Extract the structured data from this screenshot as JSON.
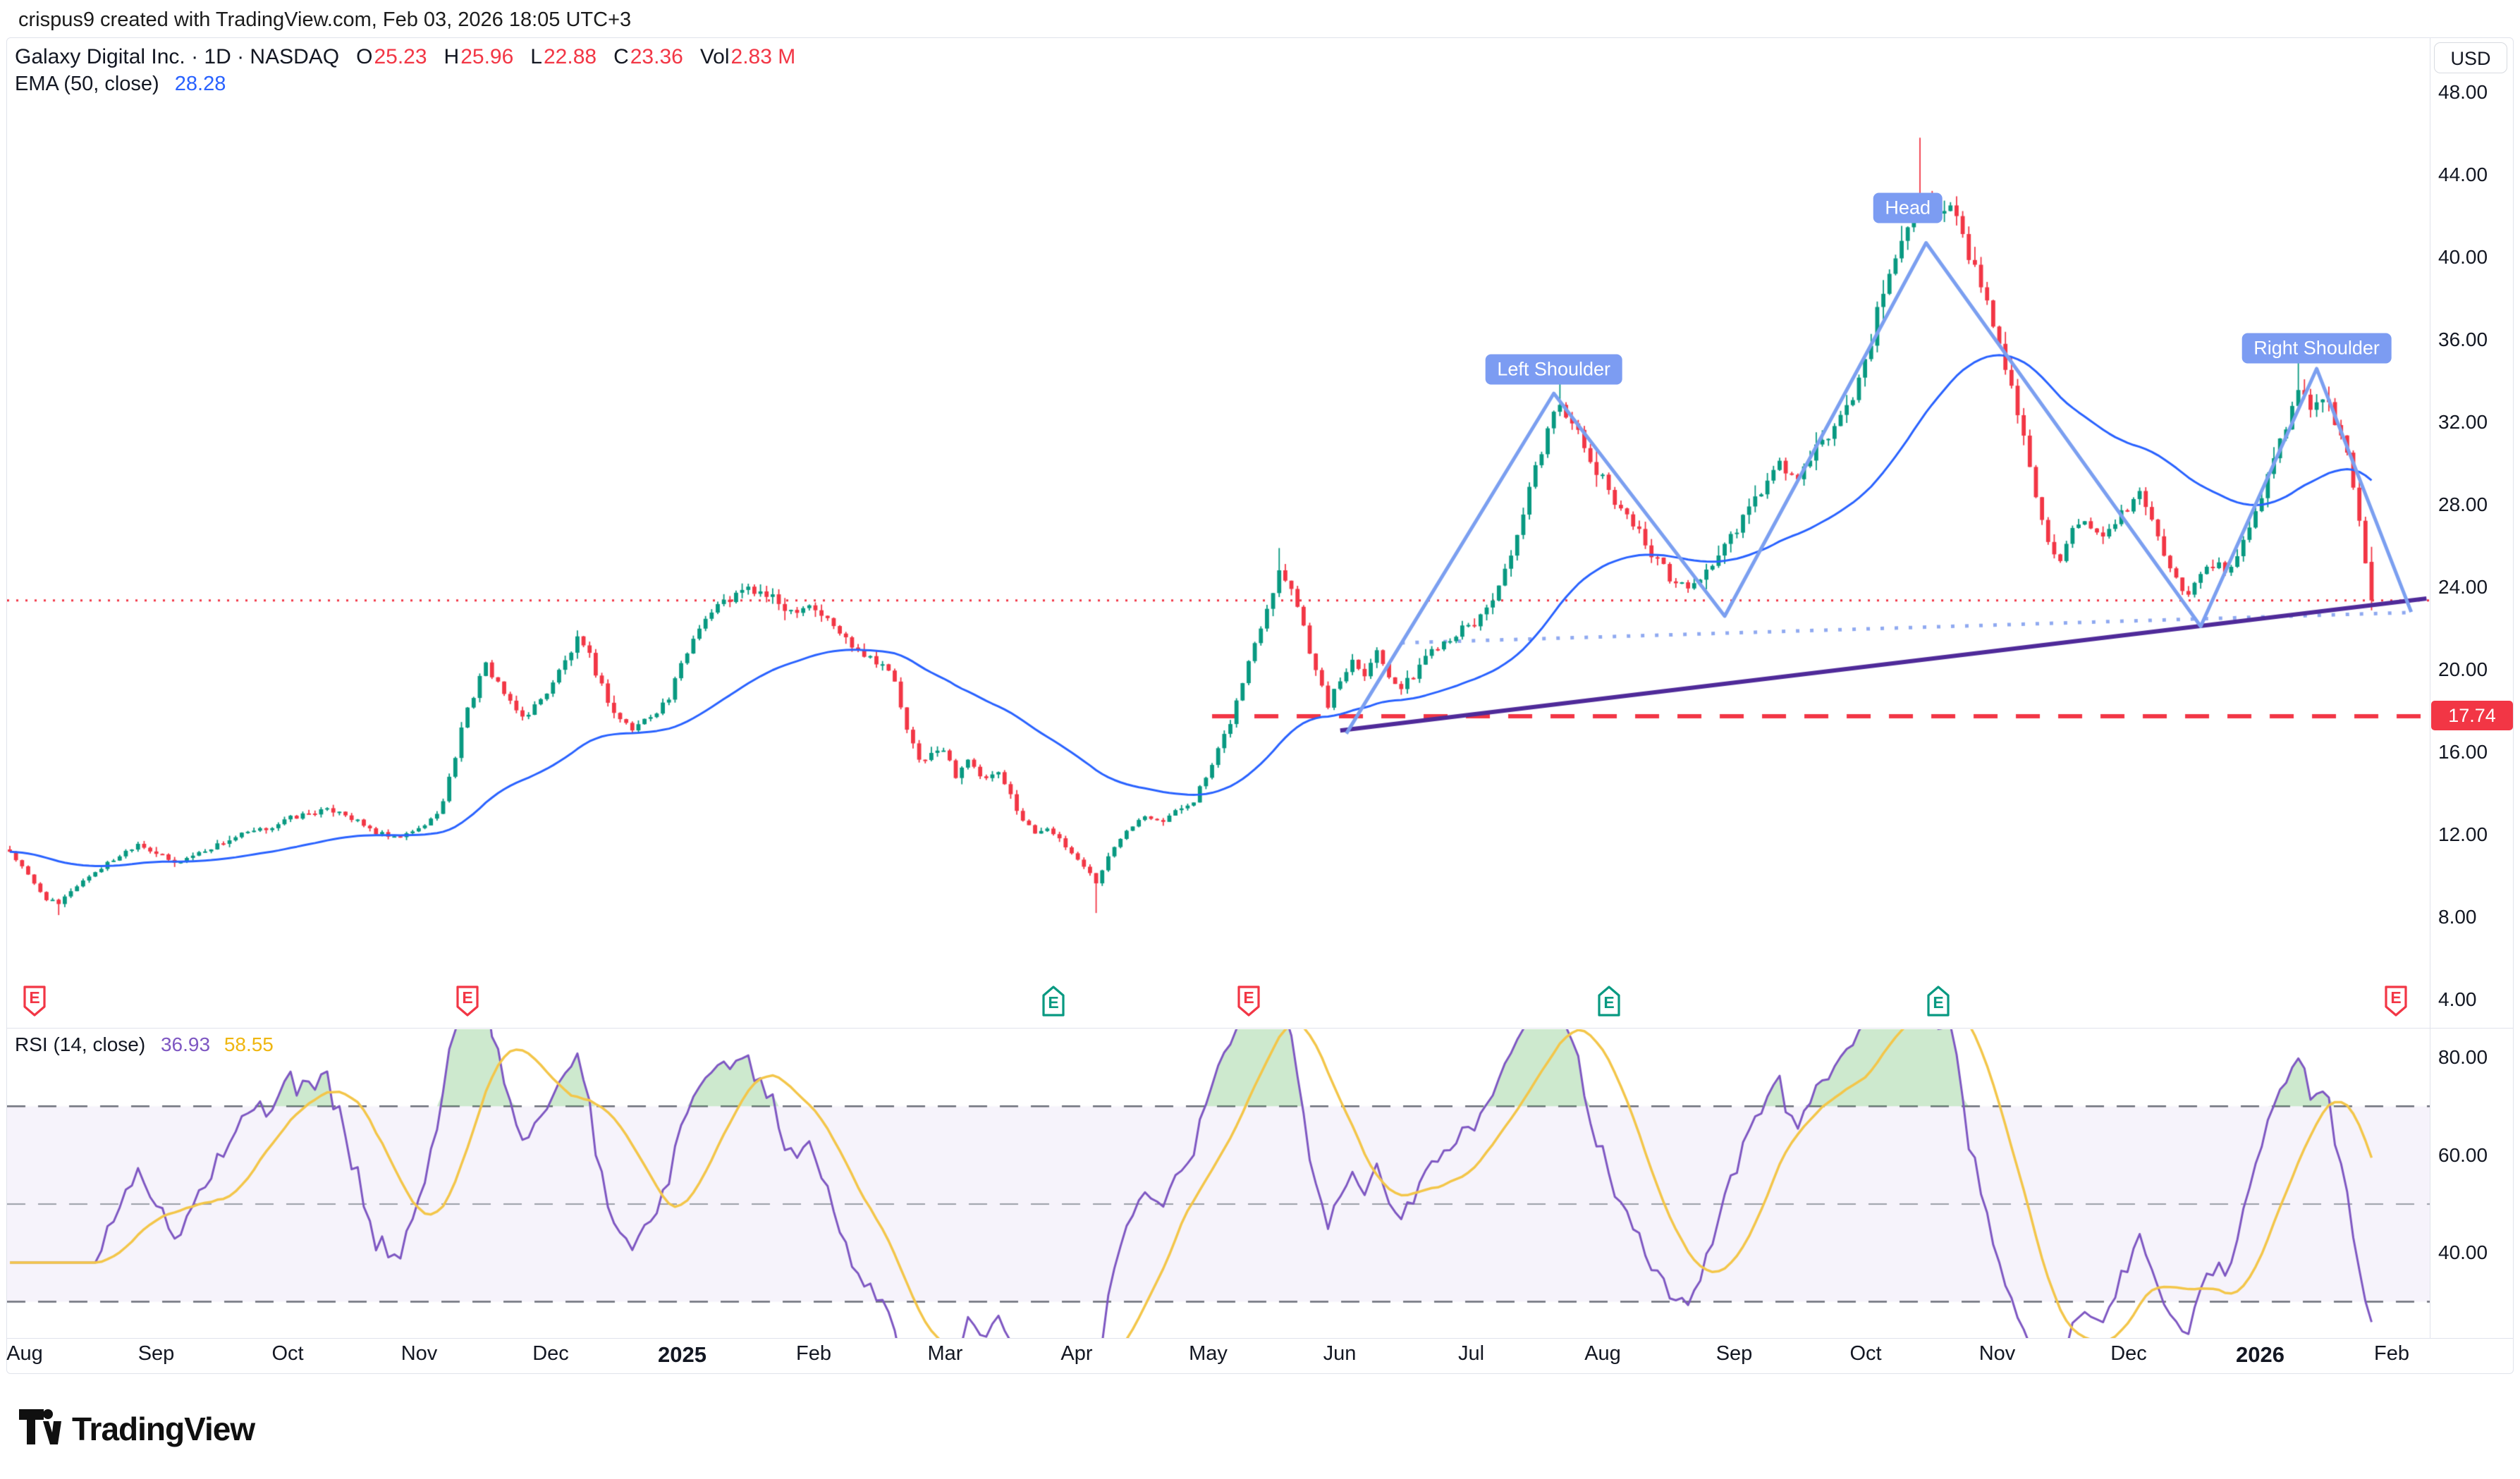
{
  "attribution": "crispus9 created with TradingView.com, Feb 03, 2026 18:05 UTC+3",
  "header": {
    "title_line": "Galaxy Digital Inc. · 1D · NASDAQ",
    "value_color": "#f23645",
    "ohlc": [
      {
        "label": "O",
        "value": "25.23"
      },
      {
        "label": "H",
        "value": "25.96"
      },
      {
        "label": "L",
        "value": "22.88"
      },
      {
        "label": "C",
        "value": "23.36"
      },
      {
        "label": "Vol",
        "value": "2.83 M"
      }
    ]
  },
  "ema_legend": {
    "label": "EMA (50, close)",
    "value": "28.28",
    "value_color": "#2962ff"
  },
  "rsi_legend": {
    "label": "RSI (14, close)",
    "value1": "36.93",
    "value1_color": "#7e57c2",
    "value2": "58.55",
    "value2_color": "#efb610"
  },
  "axis": {
    "currency": "USD",
    "price_ticks": [
      {
        "label": "48.00",
        "value": 48
      },
      {
        "label": "44.00",
        "value": 44
      },
      {
        "label": "40.00",
        "value": 40
      },
      {
        "label": "36.00",
        "value": 36
      },
      {
        "label": "32.00",
        "value": 32
      },
      {
        "label": "28.00",
        "value": 28
      },
      {
        "label": "24.00",
        "value": 24
      },
      {
        "label": "20.00",
        "value": 20
      },
      {
        "label": "16.00",
        "value": 16
      },
      {
        "label": "12.00",
        "value": 12
      },
      {
        "label": "8.00",
        "value": 8
      },
      {
        "label": "4.00",
        "value": 4
      }
    ],
    "price_flag": {
      "label": "17.74",
      "value": 17.74
    },
    "rsi_ticks": [
      {
        "label": "80.00",
        "value": 80
      },
      {
        "label": "60.00",
        "value": 60
      },
      {
        "label": "40.00",
        "value": 40
      }
    ]
  },
  "time_axis": {
    "labels": [
      {
        "text": "Aug"
      },
      {
        "text": "Sep"
      },
      {
        "text": "Oct"
      },
      {
        "text": "Nov"
      },
      {
        "text": "Dec"
      },
      {
        "text": "2025",
        "bold": true
      },
      {
        "text": "Feb"
      },
      {
        "text": "Mar"
      },
      {
        "text": "Apr"
      },
      {
        "text": "May"
      },
      {
        "text": "Jun"
      },
      {
        "text": "Jul"
      },
      {
        "text": "Aug"
      },
      {
        "text": "Sep"
      },
      {
        "text": "Oct"
      },
      {
        "text": "Nov"
      },
      {
        "text": "Dec"
      },
      {
        "text": "2026",
        "bold": true
      },
      {
        "text": "Feb"
      }
    ]
  },
  "logo": {
    "text": "TradingView"
  },
  "chart_data": {
    "type": "candlestick",
    "symbol": "Galaxy Digital Inc.",
    "interval": "1D",
    "exchange": "NASDAQ",
    "currency": "USD",
    "visible_range": "Aug 2024 - Feb 2026",
    "last_bar": {
      "open": 25.23,
      "high": 25.96,
      "low": 22.88,
      "close": 23.36,
      "volume": "2.83 M"
    },
    "ema_50_last": 28.28,
    "rsi_14_last": 36.93,
    "rsi_ma_last": 58.55,
    "price_axis": {
      "min": 4,
      "max": 48,
      "tick_step": 4
    },
    "rsi_axis": {
      "ticks": [
        80,
        60,
        40
      ],
      "levels": [
        70,
        50,
        30
      ]
    },
    "bars_total": 388,
    "close_anchors": [
      [
        0,
        11.2
      ],
      [
        2,
        10.4
      ],
      [
        4,
        9.6
      ],
      [
        6,
        8.9
      ],
      [
        8,
        8.6
      ],
      [
        10,
        9.3
      ],
      [
        13,
        10.0
      ],
      [
        16,
        10.6
      ],
      [
        19,
        11.2
      ],
      [
        21,
        11.6
      ],
      [
        24,
        11.1
      ],
      [
        27,
        10.6
      ],
      [
        30,
        11.0
      ],
      [
        34,
        11.5
      ],
      [
        38,
        12.0
      ],
      [
        41,
        12.2
      ],
      [
        43,
        12.4
      ],
      [
        46,
        12.8
      ],
      [
        50,
        13.1
      ],
      [
        54,
        13.2
      ],
      [
        57,
        12.6
      ],
      [
        60,
        12.1
      ],
      [
        63,
        11.8
      ],
      [
        66,
        12.1
      ],
      [
        69,
        12.7
      ],
      [
        71,
        13.6
      ],
      [
        73,
        15.8
      ],
      [
        74,
        17.3
      ],
      [
        76,
        18.8
      ],
      [
        78,
        20.2
      ],
      [
        80,
        19.4
      ],
      [
        82,
        18.3
      ],
      [
        84,
        17.7
      ],
      [
        87,
        18.5
      ],
      [
        90,
        19.9
      ],
      [
        93,
        21.4
      ],
      [
        95,
        20.6
      ],
      [
        97,
        19.2
      ],
      [
        99,
        17.9
      ],
      [
        102,
        17.1
      ],
      [
        105,
        17.8
      ],
      [
        108,
        18.6
      ],
      [
        110,
        20.2
      ],
      [
        113,
        22.2
      ],
      [
        116,
        23.1
      ],
      [
        119,
        23.6
      ],
      [
        121,
        23.9
      ],
      [
        124,
        23.6
      ],
      [
        126,
        23.2
      ],
      [
        128,
        22.9
      ],
      [
        131,
        23.2
      ],
      [
        134,
        22.4
      ],
      [
        137,
        21.5
      ],
      [
        140,
        20.8
      ],
      [
        143,
        20.3
      ],
      [
        145,
        19.4
      ],
      [
        147,
        17.0
      ],
      [
        149,
        15.6
      ],
      [
        151,
        15.9
      ],
      [
        153,
        16.1
      ],
      [
        155,
        14.9
      ],
      [
        157,
        15.7
      ],
      [
        159,
        14.7
      ],
      [
        162,
        14.9
      ],
      [
        164,
        13.9
      ],
      [
        166,
        12.7
      ],
      [
        168,
        12.1
      ],
      [
        170,
        12.4
      ],
      [
        172,
        11.7
      ],
      [
        174,
        11.1
      ],
      [
        176,
        10.5
      ],
      [
        178,
        9.7
      ],
      [
        180,
        10.9
      ],
      [
        183,
        12.3
      ],
      [
        186,
        13.0
      ],
      [
        189,
        12.7
      ],
      [
        192,
        13.3
      ],
      [
        194,
        13.7
      ],
      [
        197,
        15.3
      ],
      [
        200,
        17.5
      ],
      [
        202,
        19.4
      ],
      [
        204,
        21.3
      ],
      [
        206,
        23.1
      ],
      [
        208,
        24.8
      ],
      [
        210,
        24.1
      ],
      [
        212,
        22.1
      ],
      [
        214,
        19.9
      ],
      [
        216,
        18.3
      ],
      [
        218,
        19.5
      ],
      [
        220,
        20.5
      ],
      [
        222,
        19.9
      ],
      [
        224,
        20.9
      ],
      [
        226,
        19.8
      ],
      [
        228,
        19.1
      ],
      [
        230,
        19.7
      ],
      [
        232,
        20.7
      ],
      [
        234,
        21.2
      ],
      [
        237,
        21.8
      ],
      [
        240,
        22.2
      ],
      [
        243,
        23.5
      ],
      [
        246,
        25.3
      ],
      [
        248,
        27.5
      ],
      [
        250,
        29.7
      ],
      [
        252,
        31.7
      ],
      [
        254,
        33.0
      ],
      [
        256,
        32.1
      ],
      [
        258,
        30.6
      ],
      [
        260,
        29.6
      ],
      [
        263,
        28.3
      ],
      [
        266,
        27.1
      ],
      [
        269,
        25.7
      ],
      [
        272,
        24.5
      ],
      [
        275,
        23.9
      ],
      [
        278,
        24.8
      ],
      [
        281,
        25.9
      ],
      [
        284,
        27.3
      ],
      [
        287,
        28.7
      ],
      [
        290,
        29.9
      ],
      [
        293,
        29.2
      ],
      [
        296,
        30.6
      ],
      [
        299,
        31.8
      ],
      [
        302,
        33.2
      ],
      [
        304,
        35.0
      ],
      [
        306,
        37.2
      ],
      [
        308,
        39.0
      ],
      [
        310,
        41.0
      ],
      [
        312,
        42.6
      ],
      [
        314,
        43.3
      ],
      [
        316,
        41.8
      ],
      [
        318,
        42.5
      ],
      [
        320,
        40.8
      ],
      [
        322,
        39.4
      ],
      [
        324,
        37.6
      ],
      [
        326,
        36.0
      ],
      [
        328,
        33.6
      ],
      [
        330,
        31.2
      ],
      [
        332,
        28.6
      ],
      [
        334,
        26.4
      ],
      [
        336,
        25.2
      ],
      [
        338,
        26.6
      ],
      [
        340,
        27.0
      ],
      [
        343,
        26.2
      ],
      [
        345,
        27.0
      ],
      [
        347,
        27.9
      ],
      [
        349,
        28.6
      ],
      [
        351,
        27.2
      ],
      [
        353,
        25.6
      ],
      [
        355,
        24.3
      ],
      [
        357,
        23.7
      ],
      [
        359,
        24.5
      ],
      [
        361,
        25.2
      ],
      [
        363,
        24.7
      ],
      [
        365,
        25.5
      ],
      [
        367,
        26.9
      ],
      [
        369,
        28.4
      ],
      [
        371,
        30.2
      ],
      [
        373,
        32.0
      ],
      [
        375,
        33.5
      ],
      [
        377,
        32.8
      ],
      [
        379,
        33.4
      ],
      [
        381,
        32.2
      ],
      [
        383,
        30.4
      ],
      [
        384,
        28.8
      ],
      [
        385,
        27.0
      ],
      [
        386,
        25.3
      ],
      [
        387,
        23.4
      ]
    ],
    "bar_overrides": {
      "8": {
        "l": 8.1
      },
      "178": {
        "l": 8.2
      },
      "208": {
        "h": 25.9
      },
      "254": {
        "h": 34.3
      },
      "313": {
        "h": 45.8
      },
      "375": {
        "h": 34.9
      },
      "387": {
        "o": 25.23,
        "h": 25.96,
        "l": 22.88,
        "c": 23.36
      }
    },
    "indicators": [
      {
        "name": "EMA",
        "period": 50,
        "source": "close",
        "color": "#2962ff"
      },
      {
        "name": "RSI",
        "period": 14,
        "source": "close",
        "color": "#7e57c2",
        "ma_period": 14,
        "ma_color": "#f3c64a"
      }
    ],
    "drawings": {
      "head_shoulders": {
        "color": "#7b9ff0",
        "points": [
          [
            219,
            16.9
          ],
          [
            253,
            33.4
          ],
          [
            281,
            22.6
          ],
          [
            314,
            40.7
          ],
          [
            359,
            22.1
          ],
          [
            378,
            34.6
          ],
          [
            393.5,
            22.8
          ]
        ]
      },
      "pattern_labels": [
        {
          "text": "Left Shoulder",
          "day": 253,
          "price": 34.55
        },
        {
          "text": "Head",
          "day": 311,
          "price": 42.4
        },
        {
          "text": "Right Shoulder",
          "day": 378,
          "price": 35.6
        }
      ],
      "trendline": {
        "from": [
          218,
          17.05
        ],
        "to": [
          396,
          23.45
        ],
        "color": "#4f2a99"
      },
      "neckline_dotted": {
        "from": [
          228,
          21.3
        ],
        "to": [
          394,
          22.78
        ],
        "color": "#8fa9f0"
      },
      "hline": {
        "price": 17.74,
        "from_day": 197,
        "label": "17.74",
        "color": "#f23645"
      },
      "last_price_line": {
        "price": 23.36,
        "color": "#f23645"
      }
    },
    "earnings_markers": [
      {
        "day": 4,
        "dir": "down",
        "color": "#f23645"
      },
      {
        "day": 75,
        "dir": "down",
        "color": "#f23645"
      },
      {
        "day": 171,
        "dir": "up",
        "color": "#089981"
      },
      {
        "day": 203,
        "dir": "down",
        "color": "#f23645"
      },
      {
        "day": 262,
        "dir": "up",
        "color": "#089981"
      },
      {
        "day": 316,
        "dir": "up",
        "color": "#089981"
      },
      {
        "day": 391,
        "dir": "down",
        "color": "#f23645"
      }
    ],
    "style": {
      "up": "#089981",
      "down": "#f23645",
      "label_bg": "#7c9cf2",
      "band_fill": "rgba(126,87,194,0.07)",
      "overbought_fill": "rgba(76,175,80,0.28)",
      "level_color": "#6a6d78",
      "mid_level_color": "#9b9ea8",
      "text": "#131722",
      "border": "#e0e3eb"
    }
  }
}
